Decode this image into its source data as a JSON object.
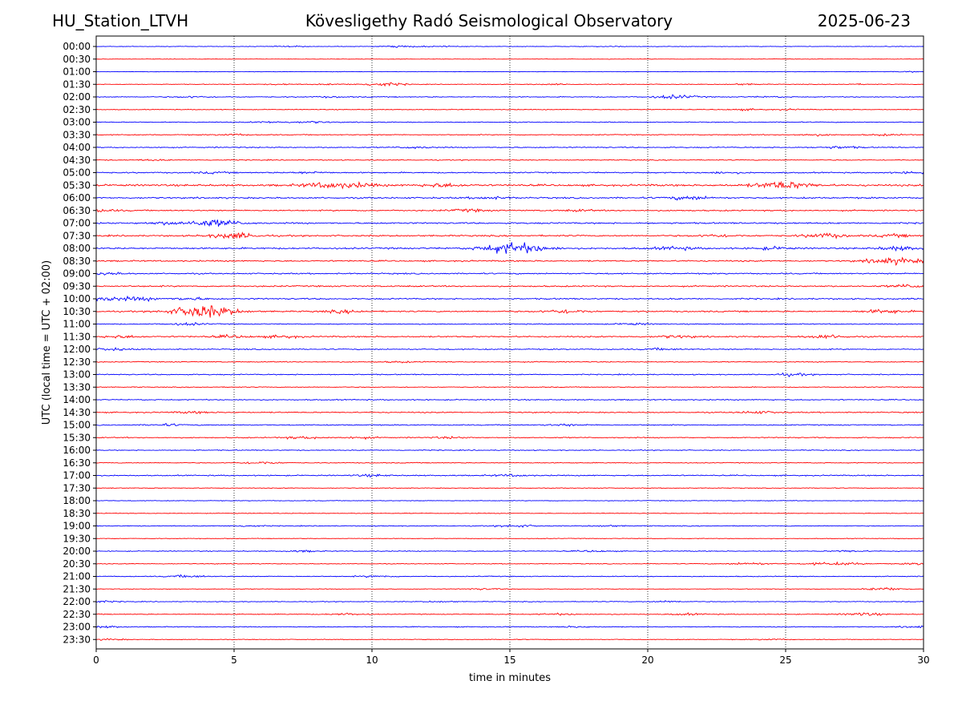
{
  "header": {
    "station": "HU_Station_LTVH",
    "title": "Kövesligethy Radó Seismological Observatory",
    "date": "2025-06-23"
  },
  "chart_data": {
    "type": "line",
    "title": "Kövesligethy Radó Seismological Observatory",
    "xlabel": "time in minutes",
    "ylabel": "UTC (local time = UTC + 02:00)",
    "xlim": [
      0,
      30
    ],
    "xticks": [
      0,
      5,
      10,
      15,
      20,
      25,
      30
    ],
    "grid": "x-dotted",
    "colors": {
      "even": "#0000ff",
      "odd": "#ff0000"
    },
    "rows": [
      {
        "label": "00:00",
        "noise": 0.6,
        "events": [
          [
            7,
            0.8
          ],
          [
            11.1,
            1.4
          ],
          [
            12.5,
            0.7
          ],
          [
            18.5,
            0.5
          ]
        ]
      },
      {
        "label": "00:30",
        "noise": 0.5,
        "events": []
      },
      {
        "label": "01:00",
        "noise": 0.5,
        "events": [
          [
            29.5,
            0.8
          ]
        ]
      },
      {
        "label": "01:30",
        "noise": 0.7,
        "events": [
          [
            6.7,
            0.8
          ],
          [
            8.5,
            0.8
          ],
          [
            10.4,
            3.0
          ],
          [
            16.5,
            0.8
          ],
          [
            23.5,
            1.0
          ],
          [
            27.5,
            0.7
          ]
        ]
      },
      {
        "label": "02:00",
        "noise": 1.0,
        "events": [
          [
            3.5,
            1.2
          ],
          [
            8.5,
            0.8
          ],
          [
            21,
            3.0
          ],
          [
            24.5,
            0.8
          ]
        ]
      },
      {
        "label": "02:30",
        "noise": 0.8,
        "events": [
          [
            23.5,
            1.2
          ],
          [
            25.2,
            0.8
          ]
        ]
      },
      {
        "label": "03:00",
        "noise": 0.9,
        "events": [
          [
            6.3,
            1.3
          ],
          [
            7.8,
            1.5
          ]
        ]
      },
      {
        "label": "03:30",
        "noise": 1.0,
        "events": [
          [
            5,
            1.2
          ],
          [
            26,
            1.5
          ],
          [
            28.6,
            1.2
          ]
        ]
      },
      {
        "label": "04:00",
        "noise": 1.1,
        "events": [
          [
            11.5,
            1.7
          ],
          [
            27,
            2.0
          ]
        ]
      },
      {
        "label": "04:30",
        "noise": 1.0,
        "events": [
          [
            2,
            0.8
          ]
        ]
      },
      {
        "label": "05:00",
        "noise": 1.3,
        "events": [
          [
            4.2,
            1.2
          ],
          [
            7.7,
            1.6
          ],
          [
            22.8,
            1.4
          ],
          [
            29.6,
            1.5
          ]
        ]
      },
      {
        "label": "05:30",
        "noise": 2.0,
        "events": [
          [
            8.3,
            4.0
          ],
          [
            9.5,
            3.0
          ],
          [
            12.5,
            2.8
          ],
          [
            24.9,
            6.0
          ]
        ]
      },
      {
        "label": "06:00",
        "noise": 1.6,
        "events": [
          [
            14.3,
            2.0
          ],
          [
            21.5,
            3.0
          ]
        ]
      },
      {
        "label": "06:30",
        "noise": 1.4,
        "events": [
          [
            0.1,
            2.0
          ],
          [
            13.5,
            2.0
          ],
          [
            17.5,
            1.3
          ]
        ]
      },
      {
        "label": "07:00",
        "noise": 1.6,
        "events": [
          [
            2.5,
            2.0
          ],
          [
            4,
            4.0
          ],
          [
            4.7,
            2.8
          ]
        ]
      },
      {
        "label": "07:30",
        "noise": 1.6,
        "events": [
          [
            5,
            4.5
          ],
          [
            22.5,
            2.0
          ],
          [
            26.4,
            3.5
          ],
          [
            28.9,
            2.0
          ]
        ]
      },
      {
        "label": "08:00",
        "noise": 1.7,
        "events": [
          [
            14.8,
            6.0
          ],
          [
            15.5,
            5.0
          ],
          [
            21,
            2.5
          ],
          [
            24.5,
            2.0
          ],
          [
            29.1,
            3.0
          ]
        ]
      },
      {
        "label": "08:30",
        "noise": 1.5,
        "events": [
          [
            28.5,
            3.0
          ],
          [
            29.3,
            3.5
          ]
        ]
      },
      {
        "label": "09:00",
        "noise": 1.4,
        "events": [
          [
            0.3,
            2.0
          ]
        ]
      },
      {
        "label": "09:30",
        "noise": 1.5,
        "events": [
          [
            29.5,
            2.5
          ]
        ]
      },
      {
        "label": "10:00",
        "noise": 1.5,
        "events": [
          [
            0.3,
            3.0
          ],
          [
            1.6,
            2.5
          ],
          [
            3.4,
            2.0
          ]
        ]
      },
      {
        "label": "10:30",
        "noise": 1.5,
        "events": [
          [
            3.65,
            6.0
          ],
          [
            4.15,
            6.0
          ],
          [
            9,
            2.2
          ],
          [
            17,
            3.0
          ],
          [
            28.6,
            3.0
          ]
        ]
      },
      {
        "label": "11:00",
        "noise": 1.0,
        "events": [
          [
            3.3,
            2.0
          ],
          [
            19.5,
            1.5
          ]
        ]
      },
      {
        "label": "11:30",
        "noise": 1.5,
        "events": [
          [
            0.9,
            2.0
          ],
          [
            4.9,
            2.0
          ],
          [
            6.8,
            2.0
          ],
          [
            21,
            2.0
          ],
          [
            26.5,
            2.8
          ]
        ]
      },
      {
        "label": "12:00",
        "noise": 1.2,
        "events": [
          [
            0.5,
            1.8
          ],
          [
            20.5,
            1.5
          ]
        ]
      },
      {
        "label": "12:30",
        "noise": 1.0,
        "events": [
          [
            11,
            1.0
          ]
        ]
      },
      {
        "label": "13:00",
        "noise": 1.1,
        "events": [
          [
            25.2,
            2.0
          ]
        ]
      },
      {
        "label": "13:30",
        "noise": 0.9,
        "events": []
      },
      {
        "label": "14:00",
        "noise": 1.1,
        "events": []
      },
      {
        "label": "14:30",
        "noise": 1.2,
        "events": [
          [
            3.5,
            1.5
          ],
          [
            24,
            2.0
          ]
        ]
      },
      {
        "label": "15:00",
        "noise": 1.1,
        "events": [
          [
            2.5,
            1.6
          ],
          [
            17,
            1.5
          ]
        ]
      },
      {
        "label": "15:30",
        "noise": 1.1,
        "events": [
          [
            7.5,
            2.0
          ],
          [
            9.5,
            1.5
          ],
          [
            12.8,
            1.4
          ]
        ]
      },
      {
        "label": "16:00",
        "noise": 0.9,
        "events": []
      },
      {
        "label": "16:30",
        "noise": 0.9,
        "events": [
          [
            6,
            2.0
          ]
        ]
      },
      {
        "label": "17:00",
        "noise": 1.2,
        "events": [
          [
            10,
            1.6
          ],
          [
            15,
            1.5
          ]
        ]
      },
      {
        "label": "17:30",
        "noise": 0.8,
        "events": []
      },
      {
        "label": "18:00",
        "noise": 0.7,
        "events": []
      },
      {
        "label": "18:30",
        "noise": 0.7,
        "events": []
      },
      {
        "label": "19:00",
        "noise": 0.9,
        "events": [
          [
            5.5,
            1.2
          ],
          [
            15.2,
            2.0
          ],
          [
            18.5,
            1.2
          ]
        ]
      },
      {
        "label": "19:30",
        "noise": 0.7,
        "events": []
      },
      {
        "label": "20:00",
        "noise": 0.9,
        "events": [
          [
            7.5,
            1.3
          ],
          [
            18,
            1.3
          ],
          [
            27.3,
            1.3
          ]
        ]
      },
      {
        "label": "20:30",
        "noise": 0.8,
        "events": [
          [
            23.7,
            2.0
          ],
          [
            26.3,
            1.8
          ],
          [
            27.3,
            1.8
          ],
          [
            29.9,
            1.6
          ]
        ]
      },
      {
        "label": "21:00",
        "noise": 0.9,
        "events": [
          [
            3.3,
            2.0
          ],
          [
            10.2,
            1.5
          ]
        ]
      },
      {
        "label": "21:30",
        "noise": 0.7,
        "events": [
          [
            14,
            1.3
          ],
          [
            28.6,
            2.5
          ]
        ]
      },
      {
        "label": "22:00",
        "noise": 0.8,
        "events": [
          [
            0.2,
            1.3
          ],
          [
            12.5,
            1.0
          ],
          [
            20.7,
            1.4
          ]
        ]
      },
      {
        "label": "22:30",
        "noise": 0.9,
        "events": [
          [
            9.1,
            1.4
          ],
          [
            16.8,
            1.3
          ],
          [
            21.5,
            1.3
          ],
          [
            27.8,
            2.5
          ]
        ]
      },
      {
        "label": "23:00",
        "noise": 0.9,
        "events": [
          [
            0.4,
            1.3
          ],
          [
            17.5,
            1.3
          ],
          [
            29.8,
            1.5
          ]
        ]
      },
      {
        "label": "23:30",
        "noise": 0.7,
        "events": [
          [
            0.5,
            1.2
          ],
          [
            24.5,
            1.0
          ]
        ]
      }
    ]
  }
}
